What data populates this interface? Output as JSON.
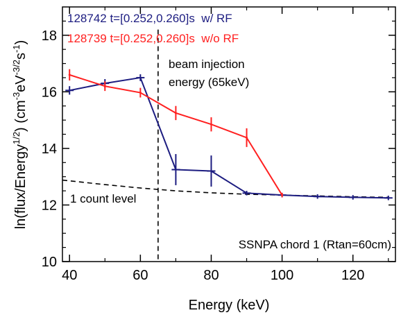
{
  "chart_data": {
    "type": "line",
    "xlabel": "Energy (keV)",
    "ylabel_main": "ln(flux/Energy",
    "ylabel_exp1": "1/2",
    "ylabel_mid": ") (cm",
    "ylabel_exp2": "-3",
    "ylabel_mid2": "eV",
    "ylabel_exp3": "-3/2",
    "ylabel_mid3": "s",
    "ylabel_exp4": "-1",
    "ylabel_end": ")",
    "xlim": [
      38,
      132
    ],
    "ylim": [
      10,
      19
    ],
    "xticks": [
      40,
      60,
      80,
      100,
      120
    ],
    "yticks": [
      10,
      12,
      14,
      16,
      18
    ],
    "grid": false,
    "legend_position": "top-left",
    "series": [
      {
        "name": "128742 t=[0.252,0.260]s  w/ RF",
        "color": "#1c1c80",
        "x": [
          40,
          50,
          60,
          70,
          80,
          90,
          100,
          110,
          120,
          130
        ],
        "y": [
          16.05,
          16.3,
          16.5,
          13.25,
          13.2,
          12.42,
          12.35,
          12.3,
          12.27,
          12.25
        ],
        "err": [
          0.15,
          0.15,
          0.12,
          0.55,
          0.55,
          0.08,
          0.08,
          0.08,
          0.08,
          0.08
        ]
      },
      {
        "name": "128739 t=[0.252,0.260]s  w/o RF",
        "color": "#ff2020",
        "x": [
          40,
          50,
          60,
          70,
          80,
          90,
          100
        ],
        "y": [
          16.6,
          16.2,
          15.97,
          15.25,
          14.85,
          14.38,
          12.35
        ],
        "err": [
          0.2,
          0.17,
          0.17,
          0.25,
          0.25,
          0.33,
          0.08
        ]
      }
    ],
    "one_count_line": {
      "label": "1 count level",
      "x": [
        38,
        50,
        60,
        70,
        80,
        90,
        100,
        110,
        120,
        130
      ],
      "y": [
        12.88,
        12.72,
        12.6,
        12.5,
        12.43,
        12.38,
        12.35,
        12.32,
        12.29,
        12.27
      ]
    },
    "beam_injection": {
      "x": 65,
      "label_line1": "beam injection",
      "label_line2": "energy (65keV)"
    },
    "annotation": "SSNPA chord 1 (Rtan=60cm)"
  }
}
